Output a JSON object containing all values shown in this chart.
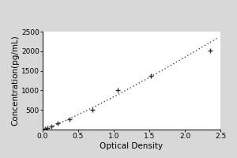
{
  "xlabel": "Optical Density",
  "ylabel": "Concentration(pg/mL)",
  "xlim": [
    0,
    2.5
  ],
  "ylim": [
    0,
    2500
  ],
  "xticks": [
    0,
    0.5,
    1.0,
    1.5,
    2.0,
    2.5
  ],
  "yticks": [
    500,
    1000,
    1500,
    2000,
    2500
  ],
  "x_data": [
    0.031,
    0.072,
    0.12,
    0.21,
    0.38,
    0.7,
    1.05,
    1.52,
    2.35
  ],
  "y_data": [
    15,
    40,
    80,
    155,
    270,
    510,
    1000,
    1380,
    2020
  ],
  "line_color": "#444444",
  "marker_color": "#333333",
  "marker": "+",
  "background_color": "#d8d8d8",
  "plot_background": "#ffffff",
  "outer_background": "#ffffff",
  "tick_fontsize": 6.5,
  "label_fontsize": 7.5
}
